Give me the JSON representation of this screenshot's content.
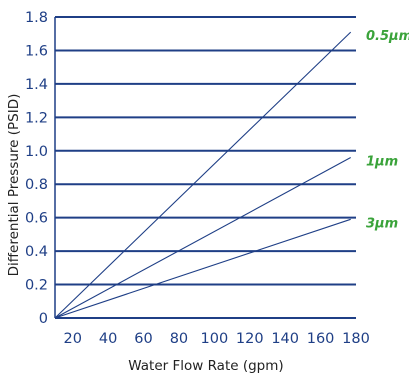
{
  "chart_data": {
    "type": "line",
    "title": "",
    "xlabel": "Water Flow Rate (gpm)",
    "ylabel": "Differential Pressure (PSID)",
    "xlim": [
      10,
      180
    ],
    "ylim": [
      0,
      1.8
    ],
    "x_ticks": [
      "20",
      "40",
      "60",
      "80",
      "100",
      "120",
      "140",
      "160",
      "180"
    ],
    "y_ticks": [
      "0",
      "0.2",
      "0.4",
      "0.6",
      "0.8",
      "1.0",
      "1.2",
      "1.4",
      "1.6",
      "1.8"
    ],
    "grid": "horizontal",
    "series": [
      {
        "name": "0.5µm",
        "x": [
          10,
          177
        ],
        "y": [
          0,
          1.71
        ]
      },
      {
        "name": "1µm",
        "x": [
          10,
          177
        ],
        "y": [
          0,
          0.96
        ]
      },
      {
        "name": "3µm",
        "x": [
          10,
          177
        ],
        "y": [
          0,
          0.59
        ]
      }
    ],
    "colors": {
      "line": "#1f3f86",
      "grid": "#1f3f86",
      "tick_text": "#1f3f86",
      "axis_title": "#222222",
      "series_label": "#3aa33a"
    }
  }
}
